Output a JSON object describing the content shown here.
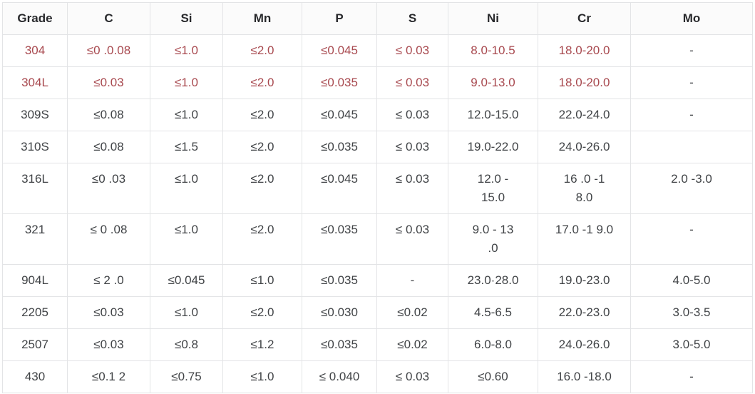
{
  "chart_data": {
    "type": "table",
    "columns": [
      "Grade",
      "C",
      "Si",
      "Mn",
      "P",
      "S",
      "Ni",
      "Cr",
      "Mo"
    ],
    "rows": [
      {
        "grade": "304",
        "highlight": true,
        "values": [
          "≤0 .0.08",
          "≤1.0",
          "≤2.0",
          "≤0.045",
          "≤ 0.03",
          "8.0-10.5",
          "18.0-20.0",
          "-"
        ]
      },
      {
        "grade": "304L",
        "highlight": true,
        "values": [
          "≤0.03",
          "≤1.0",
          "≤2.0",
          "≤0.035",
          "≤ 0.03",
          "9.0-13.0",
          "18.0-20.0",
          "-"
        ]
      },
      {
        "grade": "309S",
        "highlight": false,
        "values": [
          "≤0.08",
          "≤1.0",
          "≤2.0",
          "≤0.045",
          "≤ 0.03",
          "12.0-15.0",
          "22.0-24.0",
          "-"
        ]
      },
      {
        "grade": "310S",
        "highlight": false,
        "values": [
          "≤0.08",
          "≤1.5",
          "≤2.0",
          "≤0.035",
          "≤ 0.03",
          "19.0-22.0",
          "24.0-26.0",
          ""
        ]
      },
      {
        "grade": "316L",
        "highlight": false,
        "values": [
          "≤0 .03",
          "≤1.0",
          "≤2.0",
          "≤0.045",
          "≤ 0.03",
          "12.0 -\n15.0",
          "16 .0 -1\n8.0",
          "2.0 -3.0"
        ]
      },
      {
        "grade": "321",
        "highlight": false,
        "values": [
          "≤ 0 .08",
          "≤1.0",
          "≤2.0",
          "≤0.035",
          "≤ 0.03",
          "9.0 - 13\n.0",
          "17.0 -1 9.0",
          "-"
        ]
      },
      {
        "grade": "904L",
        "highlight": false,
        "values": [
          "≤ 2 .0",
          "≤0.045",
          "≤1.0",
          "≤0.035",
          "-",
          "23.0·28.0",
          "19.0-23.0",
          "4.0-5.0"
        ]
      },
      {
        "grade": "2205",
        "highlight": false,
        "values": [
          "≤0.03",
          "≤1.0",
          "≤2.0",
          "≤0.030",
          "≤0.02",
          "4.5-6.5",
          "22.0-23.0",
          "3.0-3.5"
        ]
      },
      {
        "grade": "2507",
        "highlight": false,
        "values": [
          "≤0.03",
          "≤0.8",
          "≤1.2",
          "≤0.035",
          "≤0.02",
          "6.0-8.0",
          "24.0-26.0",
          "3.0-5.0"
        ]
      },
      {
        "grade": "430",
        "highlight": false,
        "values": [
          "≤0.1 2",
          "≤0.75",
          "≤1.0",
          "≤ 0.040",
          "≤ 0.03",
          "≤0.60",
          "16.0 -18.0",
          "-"
        ]
      }
    ],
    "title": "",
    "legend": null
  },
  "colors": {
    "highlight_text": "#a8494f",
    "body_text": "#404346",
    "header_text": "#28292c",
    "border": "#e3e4e6",
    "header_bg": "#fbfbfb"
  }
}
